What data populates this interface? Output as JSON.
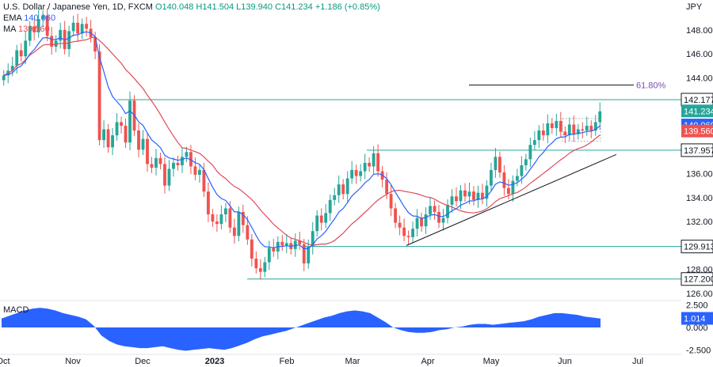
{
  "header": {
    "symbol": "U.S. Dollar / Japanese Yen, 1D, FXCM",
    "ohlc": "O140.048 H141.504 L139.940 C141.234 +1.186 (+0.85%)"
  },
  "indicators": {
    "ema_label": "EMA",
    "ema_value": "140.060",
    "ma_label": "MA",
    "ma_value": "139.560"
  },
  "currency": "JPY",
  "macd_label": "MACD",
  "fib_label": "61.80%",
  "colors": {
    "up": "#26a69a",
    "down": "#ef5350",
    "ema": "#2962ff",
    "ma": "#e04b5a",
    "level": "#26a69a",
    "macd": "#2962ff"
  },
  "chart_data": [
    {
      "type": "candlestick",
      "title": "U.S. Dollar / Japanese Yen, 1D, FXCM",
      "x_ticks": [
        "Oct",
        "Nov",
        "Dec",
        "2023",
        "Feb",
        "Mar",
        "Apr",
        "May",
        "Jun",
        "Jul"
      ],
      "y_ticks": [
        126.0,
        128.0,
        130.0,
        132.0,
        134.0,
        136.0,
        138.0,
        140.0,
        142.0,
        144.0,
        146.0,
        148.0
      ],
      "ylim": [
        125.4,
        150.5
      ],
      "price_levels": [
        {
          "value": 142.177,
          "label": "142.177"
        },
        {
          "value": 137.957,
          "label": "137.957"
        },
        {
          "value": 129.913,
          "label": "129.913"
        },
        {
          "value": 127.2,
          "label": "127.200"
        }
      ],
      "badges": [
        {
          "value": 141.234,
          "label": "141.234",
          "color": "#26a69a"
        },
        {
          "value": 140.06,
          "label": "140.060",
          "color": "#2962ff"
        },
        {
          "value": 139.56,
          "label": "139.560",
          "color": "#ef5350"
        }
      ],
      "series_close": [
        144.2,
        144.6,
        145.0,
        146.3,
        145.8,
        147.1,
        148.3,
        147.8,
        148.9,
        149.2,
        147.5,
        146.6,
        147.1,
        148.0,
        146.4,
        147.9,
        148.6,
        147.7,
        148.5,
        148.1,
        147.4,
        146.2,
        138.8,
        139.7,
        138.2,
        139.2,
        140.3,
        140.0,
        138.6,
        142.1,
        139.6,
        138.0,
        138.9,
        136.8,
        136.5,
        137.3,
        136.8,
        135.0,
        136.4,
        136.9,
        136.7,
        137.4,
        137.8,
        136.6,
        135.9,
        136.3,
        134.5,
        132.6,
        132.0,
        131.8,
        132.6,
        133.1,
        131.5,
        130.8,
        132.8,
        131.7,
        130.5,
        128.9,
        128.1,
        127.8,
        128.6,
        129.8,
        129.5,
        130.3,
        130.0,
        130.2,
        129.7,
        130.4,
        130.1,
        128.5,
        129.9,
        131.2,
        132.5,
        131.9,
        132.7,
        133.8,
        134.2,
        135.1,
        134.3,
        135.6,
        136.3,
        135.8,
        136.2,
        136.9,
        136.6,
        137.7,
        136.2,
        135.5,
        134.3,
        133.1,
        131.9,
        131.5,
        130.8,
        130.7,
        131.4,
        132.3,
        131.6,
        132.6,
        133.3,
        132.8,
        131.9,
        132.3,
        133.4,
        134.1,
        133.7,
        134.6,
        134.1,
        134.5,
        133.8,
        134.4,
        133.9,
        135.0,
        136.3,
        137.4,
        136.1,
        134.8,
        134.3,
        135.4,
        135.8,
        136.7,
        137.2,
        138.4,
        138.8,
        139.6,
        139.2,
        140.2,
        139.8,
        140.4,
        139.5,
        139.2,
        140.1,
        139.3,
        139.7,
        139.6,
        140.0,
        139.6,
        140.3,
        141.2
      ],
      "ema_value": 140.06,
      "ma_value": 139.56
    },
    {
      "type": "area",
      "title": "MACD",
      "y_ticks": [
        2.5,
        0.0,
        -2.5
      ],
      "ylim": [
        -3.0,
        3.0
      ],
      "values": [
        1.0,
        1.3,
        1.6,
        1.9,
        2.1,
        2.2,
        2.1,
        1.9,
        1.6,
        1.4,
        1.2,
        0.9,
        0.2,
        -0.9,
        -1.5,
        -1.9,
        -2.1,
        -2.2,
        -2.3,
        -2.3,
        -2.2,
        -2.1,
        -2.3,
        -2.5,
        -2.6,
        -2.5,
        -2.4,
        -2.3,
        -2.4,
        -2.5,
        -2.3,
        -2.0,
        -1.7,
        -1.3,
        -1.0,
        -0.8,
        -0.6,
        -0.4,
        -0.1,
        0.2,
        0.5,
        0.8,
        1.1,
        1.3,
        1.6,
        1.8,
        1.9,
        1.8,
        1.6,
        1.1,
        0.6,
        0.0,
        -0.3,
        -0.5,
        -0.6,
        -0.6,
        -0.5,
        -0.3,
        -0.2,
        0.0,
        0.1,
        0.3,
        0.4,
        0.4,
        0.3,
        0.4,
        0.5,
        0.6,
        0.7,
        0.9,
        1.2,
        1.4,
        1.6,
        1.6,
        1.5,
        1.4,
        1.2,
        1.1,
        1.0
      ],
      "last_label": "1.014"
    }
  ]
}
